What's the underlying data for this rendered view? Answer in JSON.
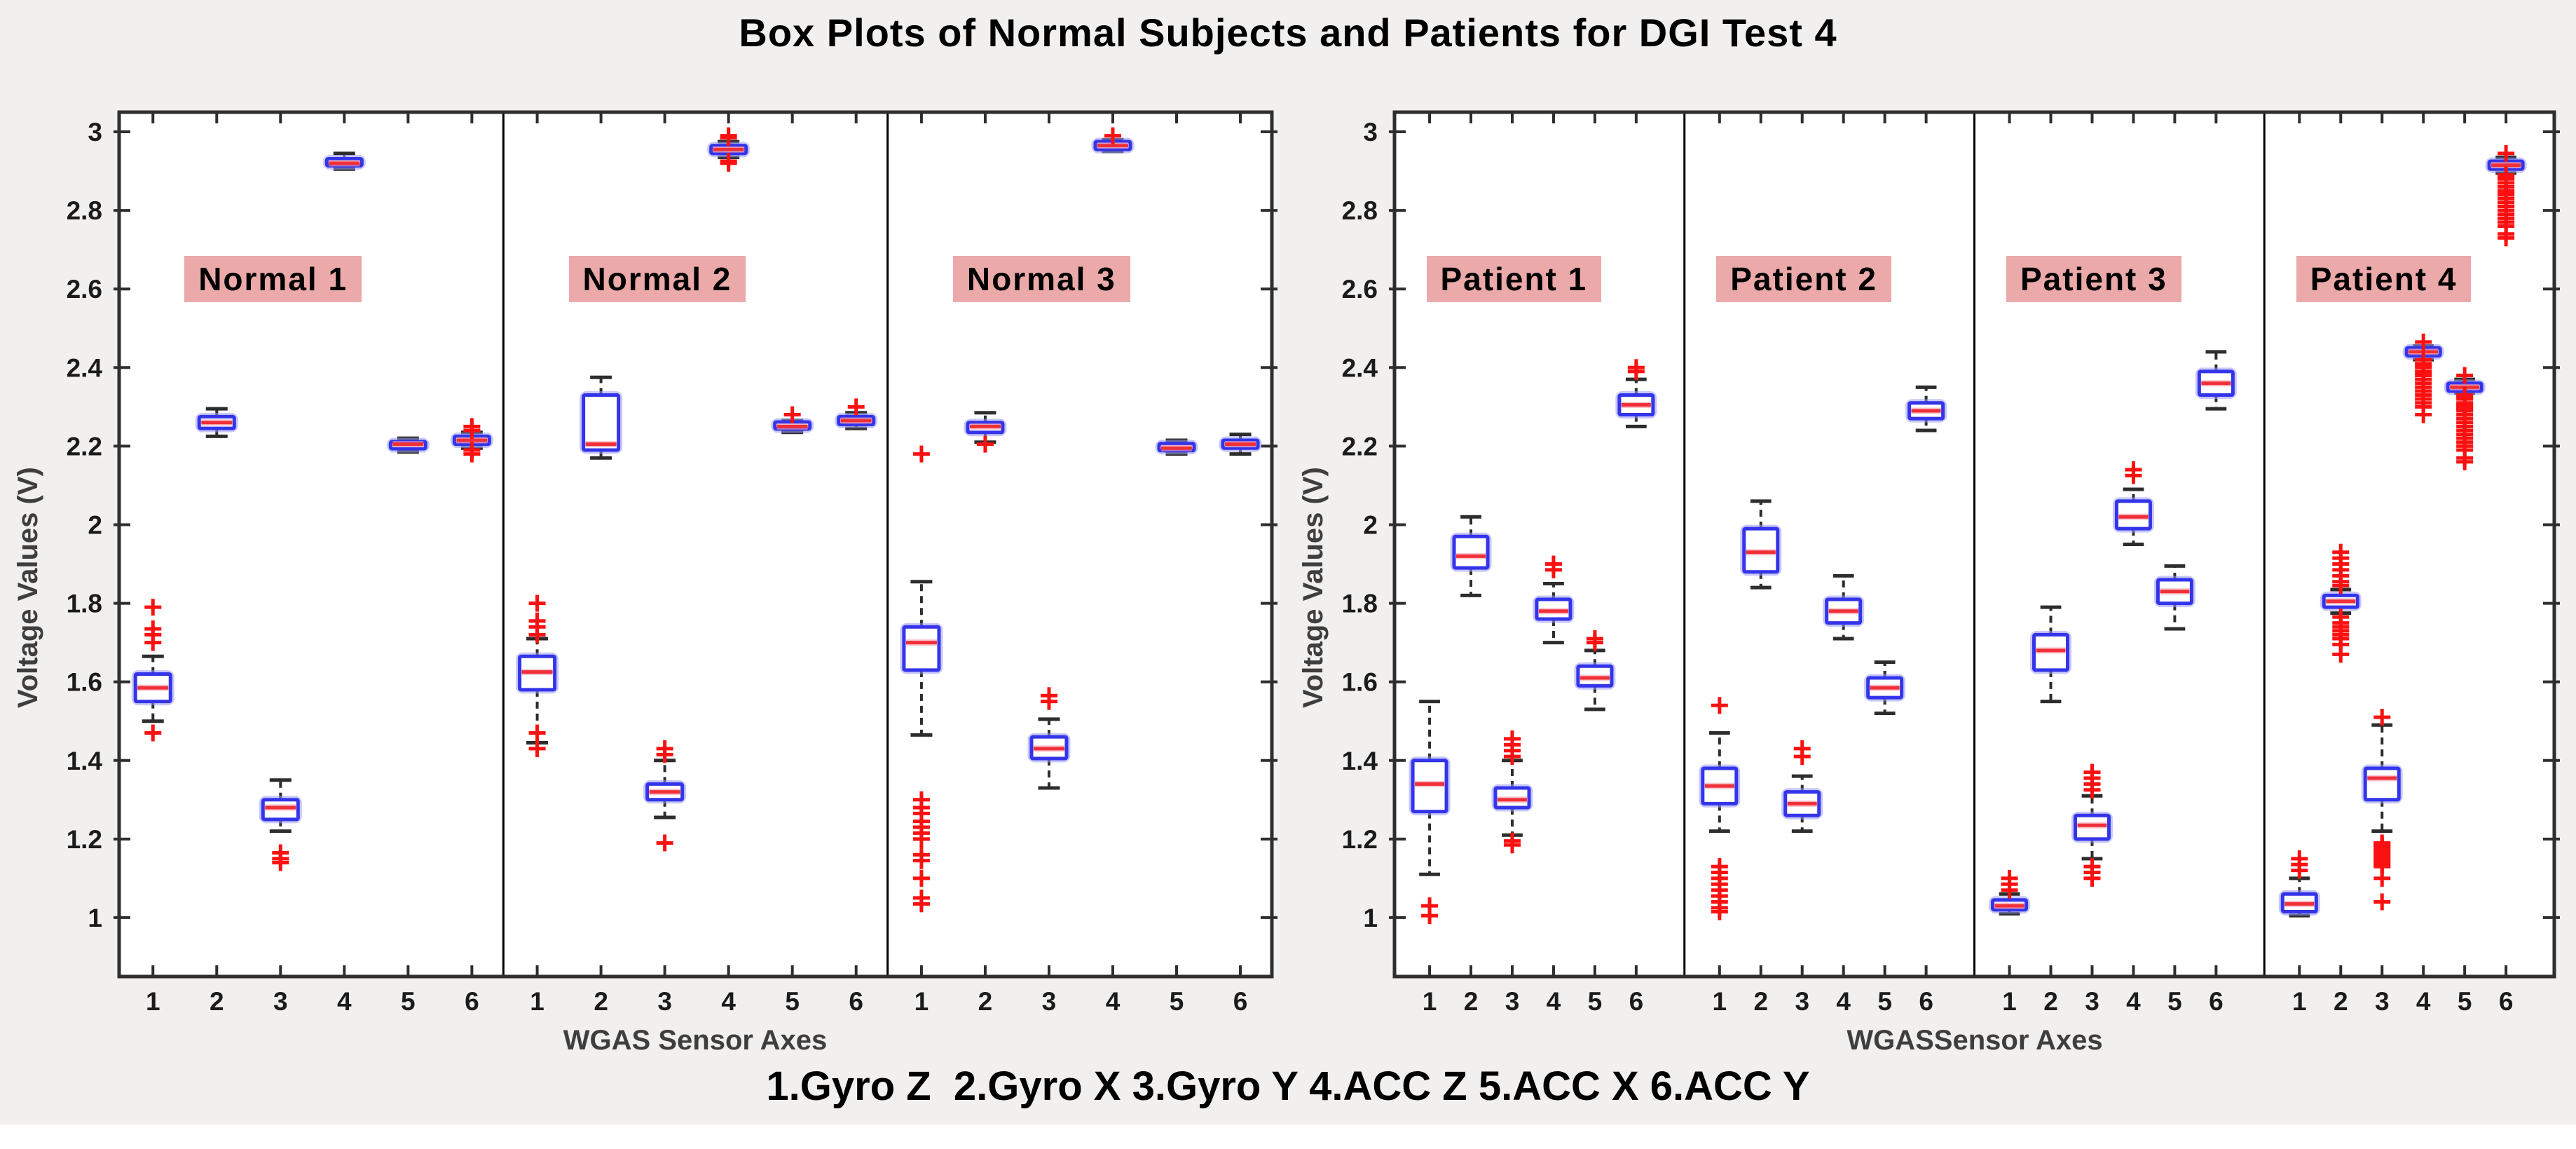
{
  "title": "Box Plots of Normal Subjects and Patients for DGI Test 4",
  "caption": "1.Gyro Z  2.Gyro X 3.Gyro Y 4.ACC Z 5.ACC X 6.ACC Y",
  "colors": {
    "page_bg": "#f1f0ef",
    "panel_bg": "#ffffff",
    "axis_border": "#2e2e2e",
    "tick_color": "#2e2e2e",
    "box_edge": "#3434ea",
    "box_halo": "#9a9af5",
    "median": "#f03038",
    "median_halo": "#f7a0b0",
    "whisker": "#2d2d2d",
    "outlier": "#fb1111",
    "divider": "#000000",
    "group_label_bg": "#eba9a9",
    "label_text": "#3e3e3e"
  },
  "chart_data": [
    {
      "type": "boxplot",
      "panel": "normals",
      "xlabel": "WGAS Sensor Axes",
      "ylabel": "Voltage Values (V)",
      "ylim": [
        0.85,
        3.05
      ],
      "yticks": [
        "1",
        "1.2",
        "1.4",
        "1.6",
        "1.8",
        "2",
        "2.2",
        "2.4",
        "2.6",
        "2.8",
        "3"
      ],
      "box_labels": [
        "1",
        "2",
        "3",
        "4",
        "5",
        "6"
      ],
      "legend_note": "axes: 1=Gyro Z, 2=Gyro X, 3=Gyro Y, 4=ACC Z, 5=ACC X, 6=ACC Y",
      "groups": [
        {
          "label": "Normal 1",
          "boxes": [
            {
              "lo": 1.5,
              "q1": 1.55,
              "med": 1.585,
              "q3": 1.62,
              "hi": 1.665,
              "out": [
                1.79,
                1.735,
                1.72,
                1.7,
                1.47
              ]
            },
            {
              "lo": 2.225,
              "q1": 2.245,
              "med": 2.26,
              "q3": 2.275,
              "hi": 2.295,
              "out": []
            },
            {
              "lo": 1.22,
              "q1": 1.25,
              "med": 1.28,
              "q3": 1.3,
              "hi": 1.35,
              "out": [
                1.165,
                1.15,
                1.14
              ]
            },
            {
              "lo": 2.905,
              "q1": 2.915,
              "med": 2.92,
              "q3": 2.93,
              "hi": 2.945,
              "out": []
            },
            {
              "lo": 2.185,
              "q1": 2.195,
              "med": 2.205,
              "q3": 2.21,
              "hi": 2.22,
              "out": []
            },
            {
              "lo": 2.195,
              "q1": 2.205,
              "med": 2.215,
              "q3": 2.225,
              "hi": 2.235,
              "out": [
                2.25,
                2.24,
                2.19,
                2.18
              ]
            }
          ]
        },
        {
          "label": "Normal 2",
          "boxes": [
            {
              "lo": 1.445,
              "q1": 1.58,
              "med": 1.625,
              "q3": 1.665,
              "hi": 1.71,
              "out": [
                1.8,
                1.755,
                1.74,
                1.72,
                1.47,
                1.43
              ]
            },
            {
              "lo": 2.17,
              "q1": 2.19,
              "med": 2.205,
              "q3": 2.33,
              "hi": 2.375,
              "out": []
            },
            {
              "lo": 1.255,
              "q1": 1.3,
              "med": 1.32,
              "q3": 1.34,
              "hi": 1.4,
              "out": [
                1.43,
                1.415,
                1.19
              ]
            },
            {
              "lo": 2.935,
              "q1": 2.945,
              "med": 2.955,
              "q3": 2.965,
              "hi": 2.975,
              "out": [
                2.99,
                2.985,
                2.925,
                2.92
              ]
            },
            {
              "lo": 2.235,
              "q1": 2.245,
              "med": 2.25,
              "q3": 2.26,
              "hi": 2.265,
              "out": [
                2.28
              ]
            },
            {
              "lo": 2.245,
              "q1": 2.255,
              "med": 2.265,
              "q3": 2.275,
              "hi": 2.285,
              "out": [
                2.3
              ]
            }
          ]
        },
        {
          "label": "Normal 3",
          "boxes": [
            {
              "lo": 1.465,
              "q1": 1.63,
              "med": 1.7,
              "q3": 1.74,
              "hi": 1.855,
              "out": [
                2.18,
                1.3,
                1.28,
                1.265,
                1.245,
                1.23,
                1.215,
                1.2,
                1.16,
                1.145,
                1.1,
                1.05,
                1.035
              ]
            },
            {
              "lo": 2.21,
              "q1": 2.235,
              "med": 2.25,
              "q3": 2.26,
              "hi": 2.285,
              "out": [
                2.205
              ]
            },
            {
              "lo": 1.33,
              "q1": 1.405,
              "med": 1.43,
              "q3": 1.46,
              "hi": 1.505,
              "out": [
                1.565,
                1.55
              ]
            },
            {
              "lo": 2.95,
              "q1": 2.955,
              "med": 2.965,
              "q3": 2.975,
              "hi": 2.98,
              "out": [
                2.99
              ]
            },
            {
              "lo": 2.18,
              "q1": 2.19,
              "med": 2.195,
              "q3": 2.205,
              "hi": 2.215,
              "out": []
            },
            {
              "lo": 2.18,
              "q1": 2.195,
              "med": 2.205,
              "q3": 2.215,
              "hi": 2.23,
              "out": []
            }
          ]
        }
      ]
    },
    {
      "type": "boxplot",
      "panel": "patients",
      "xlabel": "WGASSensor Axes",
      "ylabel": "Voltage Values (V)",
      "ylim": [
        0.85,
        3.05
      ],
      "yticks": [
        "1",
        "1.2",
        "1.4",
        "1.6",
        "1.8",
        "2",
        "2.2",
        "2.4",
        "2.6",
        "2.8",
        "3"
      ],
      "box_labels": [
        "1",
        "2",
        "3",
        "4",
        "5",
        "6"
      ],
      "legend_note": "axes: 1=Gyro Z, 2=Gyro X, 3=Gyro Y, 4=ACC Z, 5=ACC X, 6=ACC Y",
      "groups": [
        {
          "label": "Patient 1",
          "boxes": [
            {
              "lo": 1.11,
              "q1": 1.27,
              "med": 1.34,
              "q3": 1.4,
              "hi": 1.55,
              "out": [
                1.03,
                1.005
              ]
            },
            {
              "lo": 1.82,
              "q1": 1.89,
              "med": 1.92,
              "q3": 1.97,
              "hi": 2.02,
              "out": []
            },
            {
              "lo": 1.21,
              "q1": 1.28,
              "med": 1.3,
              "q3": 1.33,
              "hi": 1.4,
              "out": [
                1.455,
                1.44,
                1.425,
                1.41,
                1.195,
                1.185
              ]
            },
            {
              "lo": 1.7,
              "q1": 1.76,
              "med": 1.78,
              "q3": 1.81,
              "hi": 1.85,
              "out": [
                1.9,
                1.885
              ]
            },
            {
              "lo": 1.53,
              "q1": 1.59,
              "med": 1.61,
              "q3": 1.64,
              "hi": 1.68,
              "out": [
                1.71,
                1.7
              ]
            },
            {
              "lo": 2.25,
              "q1": 2.28,
              "med": 2.305,
              "q3": 2.33,
              "hi": 2.37,
              "out": [
                2.4,
                2.39
              ]
            }
          ]
        },
        {
          "label": "Patient 2",
          "boxes": [
            {
              "lo": 1.22,
              "q1": 1.29,
              "med": 1.335,
              "q3": 1.38,
              "hi": 1.47,
              "out": [
                1.54,
                1.13,
                1.115,
                1.1,
                1.085,
                1.07,
                1.055,
                1.04,
                1.025,
                1.015
              ]
            },
            {
              "lo": 1.84,
              "q1": 1.88,
              "med": 1.93,
              "q3": 1.99,
              "hi": 2.06,
              "out": []
            },
            {
              "lo": 1.22,
              "q1": 1.26,
              "med": 1.29,
              "q3": 1.32,
              "hi": 1.36,
              "out": [
                1.43,
                1.41
              ]
            },
            {
              "lo": 1.71,
              "q1": 1.75,
              "med": 1.78,
              "q3": 1.81,
              "hi": 1.87,
              "out": []
            },
            {
              "lo": 1.52,
              "q1": 1.56,
              "med": 1.585,
              "q3": 1.61,
              "hi": 1.65,
              "out": []
            },
            {
              "lo": 2.24,
              "q1": 2.27,
              "med": 2.29,
              "q3": 2.31,
              "hi": 2.35,
              "out": []
            }
          ]
        },
        {
          "label": "Patient 3",
          "boxes": [
            {
              "lo": 1.01,
              "q1": 1.02,
              "med": 1.03,
              "q3": 1.045,
              "hi": 1.06,
              "out": [
                1.1,
                1.085,
                1.07
              ]
            },
            {
              "lo": 1.55,
              "q1": 1.63,
              "med": 1.68,
              "q3": 1.72,
              "hi": 1.79,
              "out": []
            },
            {
              "lo": 1.15,
              "q1": 1.2,
              "med": 1.235,
              "q3": 1.26,
              "hi": 1.31,
              "out": [
                1.37,
                1.355,
                1.34,
                1.325,
                1.13,
                1.115,
                1.1
              ]
            },
            {
              "lo": 1.95,
              "q1": 1.99,
              "med": 2.02,
              "q3": 2.06,
              "hi": 2.09,
              "out": [
                2.14,
                2.125
              ]
            },
            {
              "lo": 1.735,
              "q1": 1.8,
              "med": 1.83,
              "q3": 1.86,
              "hi": 1.895,
              "out": []
            },
            {
              "lo": 2.295,
              "q1": 2.33,
              "med": 2.36,
              "q3": 2.39,
              "hi": 2.44,
              "out": []
            }
          ]
        },
        {
          "label": "Patient 4",
          "boxes": [
            {
              "lo": 1.005,
              "q1": 1.015,
              "med": 1.035,
              "q3": 1.06,
              "hi": 1.1,
              "out": [
                1.15,
                1.135,
                1.12
              ]
            },
            {
              "lo": 1.775,
              "q1": 1.79,
              "med": 1.805,
              "q3": 1.82,
              "hi": 1.835,
              "out": [
                1.93,
                1.915,
                1.9,
                1.885,
                1.87,
                1.855,
                1.845,
                1.765,
                1.75,
                1.74,
                1.73,
                1.72,
                1.71,
                1.695,
                1.67
              ]
            },
            {
              "lo": 1.22,
              "q1": 1.3,
              "med": 1.355,
              "q3": 1.38,
              "hi": 1.49,
              "out": [
                1.51,
                1.19,
                1.185,
                1.18,
                1.175,
                1.17,
                1.165,
                1.16,
                1.155,
                1.15,
                1.145,
                1.14,
                1.135,
                1.13,
                1.1,
                1.04
              ]
            },
            {
              "lo": 2.42,
              "q1": 2.43,
              "med": 2.44,
              "q3": 2.45,
              "hi": 2.455,
              "out": [
                2.465,
                2.42,
                2.41,
                2.405,
                2.4,
                2.39,
                2.385,
                2.38,
                2.37,
                2.36,
                2.35,
                2.34,
                2.33,
                2.32,
                2.31,
                2.3,
                2.28
              ]
            },
            {
              "lo": 2.335,
              "q1": 2.34,
              "med": 2.35,
              "q3": 2.36,
              "hi": 2.37,
              "out": [
                2.38,
                2.33,
                2.325,
                2.32,
                2.31,
                2.305,
                2.3,
                2.295,
                2.29,
                2.28,
                2.27,
                2.26,
                2.25,
                2.24,
                2.23,
                2.22,
                2.21,
                2.2,
                2.19,
                2.17,
                2.16
              ]
            },
            {
              "lo": 2.895,
              "q1": 2.905,
              "med": 2.915,
              "q3": 2.925,
              "hi": 2.935,
              "out": [
                2.945,
                2.89,
                2.885,
                2.88,
                2.87,
                2.86,
                2.85,
                2.845,
                2.84,
                2.83,
                2.82,
                2.81,
                2.8,
                2.79,
                2.78,
                2.77,
                2.76,
                2.74,
                2.73
              ]
            }
          ]
        }
      ]
    }
  ]
}
